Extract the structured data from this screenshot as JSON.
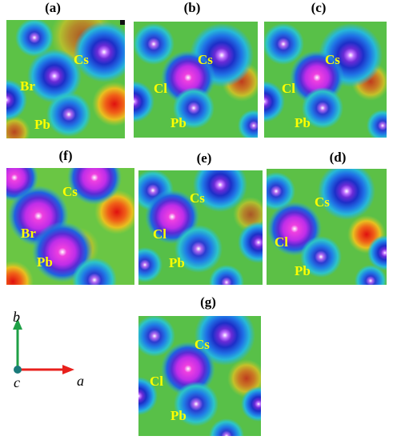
{
  "panels": [
    {
      "id": "a",
      "title": "(a)",
      "labels": {
        "cs": "Cs",
        "x": "Br",
        "pb": "Pb"
      }
    },
    {
      "id": "b",
      "title": "(b)",
      "labels": {
        "cs": "Cs",
        "x": "Cl",
        "pb": "Pb"
      }
    },
    {
      "id": "c",
      "title": "(c)",
      "labels": {
        "cs": "Cs",
        "x": "Cl",
        "pb": "Pb"
      }
    },
    {
      "id": "f",
      "title": "(f)",
      "labels": {
        "cs": "Cs",
        "x": "Br",
        "pb": "Pb"
      }
    },
    {
      "id": "e",
      "title": "(e)",
      "labels": {
        "cs": "Cs",
        "x": "Cl",
        "pb": "Pb"
      }
    },
    {
      "id": "d",
      "title": "(d)",
      "labels": {
        "cs": "Cs",
        "x": "Cl",
        "pb": "Pb"
      }
    },
    {
      "id": "g",
      "title": "(g)",
      "labels": {
        "cs": "Cs",
        "x": "Cl",
        "pb": "Pb"
      }
    }
  ],
  "axes": {
    "a": "a",
    "b": "b",
    "c": "c"
  },
  "colors": {
    "axis_a": "#e8201c",
    "axis_b": "#1fa046",
    "origin": "#1a7a7a",
    "label": "#ffff00"
  }
}
